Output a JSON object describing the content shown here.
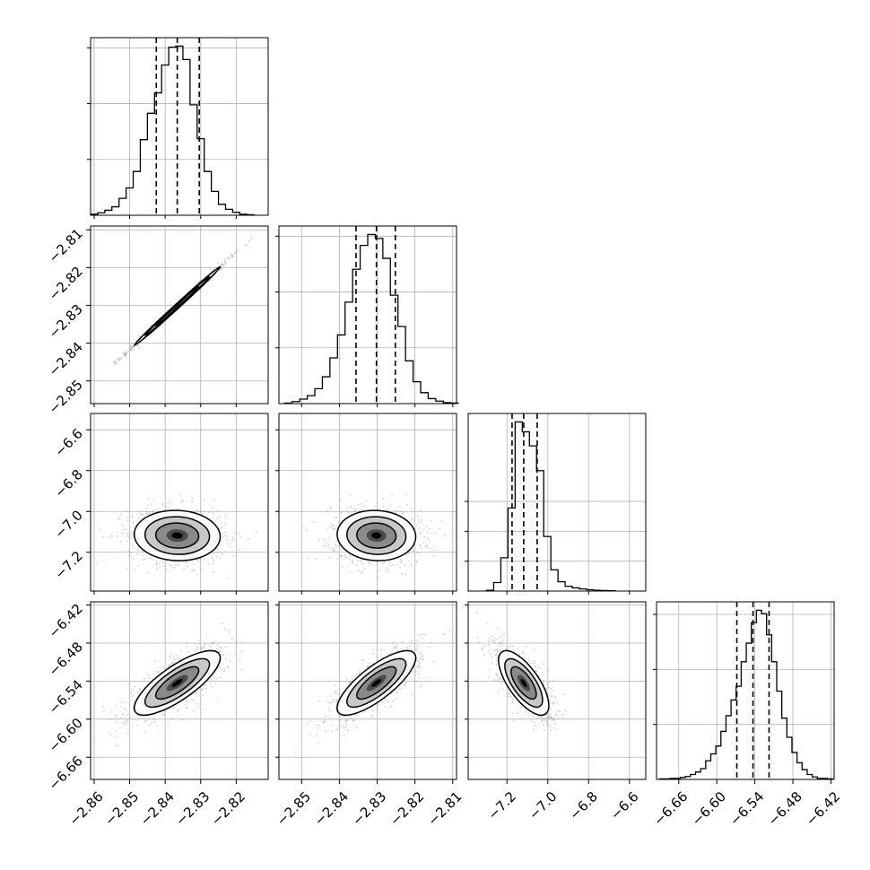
{
  "chart_data": {
    "type": "corner",
    "title": "",
    "grid": true,
    "parameters": [
      {
        "range": [
          -2.861,
          -2.811
        ],
        "ticks": [
          "−2.86",
          "−2.85",
          "−2.84",
          "−2.83",
          "−2.82"
        ],
        "tick_values": [
          -2.86,
          -2.85,
          -2.84,
          -2.83,
          -2.82
        ],
        "quantiles": [
          -2.8425,
          -2.8366,
          -2.8304
        ],
        "histogram": {
          "bin_edges": [
            -2.861,
            -2.859,
            -2.857,
            -2.855,
            -2.853,
            -2.851,
            -2.849,
            -2.847,
            -2.845,
            -2.843,
            -2.841,
            -2.839,
            -2.837,
            -2.835,
            -2.833,
            -2.831,
            -2.829,
            -2.827,
            -2.825,
            -2.823,
            -2.821,
            -2.819,
            -2.817,
            -2.815
          ],
          "counts": [
            2,
            5,
            10,
            17,
            34,
            55,
            88,
            152,
            205,
            246,
            302,
            338,
            340,
            313,
            222,
            154,
            88,
            48,
            22,
            12,
            6,
            2,
            1
          ]
        }
      },
      {
        "range": [
          -2.856,
          -2.809
        ],
        "ticks": [
          "−2.85",
          "−2.84",
          "−2.83",
          "−2.82",
          "−2.81"
        ],
        "tick_values": [
          -2.85,
          -2.84,
          -2.83,
          -2.82,
          -2.81
        ],
        "quantiles": [
          -2.8356,
          -2.8302,
          -2.8252
        ],
        "histogram": {
          "bin_edges": [
            -2.8545,
            -2.8525,
            -2.8505,
            -2.8485,
            -2.8465,
            -2.8445,
            -2.8425,
            -2.8405,
            -2.8385,
            -2.8365,
            -2.8345,
            -2.8325,
            -2.8305,
            -2.8285,
            -2.8265,
            -2.8245,
            -2.8225,
            -2.8205,
            -2.8185,
            -2.8165,
            -2.8145,
            -2.8125,
            -2.8105,
            -2.8085
          ],
          "counts": [
            1,
            4,
            9,
            16,
            30,
            54,
            92,
            138,
            204,
            270,
            318,
            340,
            332,
            292,
            218,
            155,
            86,
            44,
            22,
            10,
            5,
            2,
            1
          ]
        }
      },
      {
        "range": [
          -7.39,
          -6.52
        ],
        "ticks": [
          "−7.2",
          "−7.0",
          "−6.8",
          "−6.6"
        ],
        "tick_values": [
          -7.2,
          -7.0,
          -6.8,
          -6.6
        ],
        "quantiles": [
          -7.175,
          -7.118,
          -7.052
        ],
        "histogram": {
          "bin_edges": [
            -7.3,
            -7.265,
            -7.23,
            -7.195,
            -7.16,
            -7.125,
            -7.09,
            -7.055,
            -7.02,
            -6.985,
            -6.95,
            -6.915,
            -6.88,
            -6.845,
            -6.81,
            -6.775,
            -6.74,
            -6.705,
            -6.67
          ],
          "counts": [
            3,
            32,
            125,
            312,
            635,
            598,
            545,
            452,
            205,
            80,
            35,
            18,
            12,
            8,
            5,
            3,
            2,
            1
          ]
        }
      },
      {
        "range": [
          -6.695,
          -6.415
        ],
        "ticks": [
          "−6.66",
          "−6.60",
          "−6.54",
          "−6.48",
          "−6.42"
        ],
        "tick_values": [
          -6.66,
          -6.6,
          -6.54,
          -6.48,
          -6.42
        ],
        "quantiles": [
          -6.5684,
          -6.5429,
          -6.5176
        ],
        "histogram": {
          "bin_edges": [
            -6.6895,
            -6.6815,
            -6.6735,
            -6.6655,
            -6.6575,
            -6.6495,
            -6.6415,
            -6.6335,
            -6.6255,
            -6.6175,
            -6.6095,
            -6.6015,
            -6.5935,
            -6.5855,
            -6.5775,
            -6.5695,
            -6.5615,
            -6.5535,
            -6.5455,
            -6.5375,
            -6.5295,
            -6.5215,
            -6.5135,
            -6.5055,
            -6.4975,
            -6.4895,
            -6.4815,
            -6.4735,
            -6.4655,
            -6.4575,
            -6.4495,
            -6.4415,
            -6.4335,
            -6.4255,
            -6.4175
          ],
          "counts": [
            1,
            1,
            2,
            2,
            4,
            6,
            10,
            15,
            22,
            38,
            52,
            68,
            98,
            130,
            162,
            190,
            240,
            278,
            320,
            345,
            338,
            295,
            240,
            180,
            125,
            86,
            55,
            34,
            20,
            10,
            5,
            2,
            2,
            1
          ]
        }
      }
    ],
    "pair_panels": [
      {
        "row": 1,
        "col": 0,
        "correlation": 0.997
      },
      {
        "row": 2,
        "col": 0,
        "correlation": -0.05
      },
      {
        "row": 2,
        "col": 1,
        "correlation": -0.05
      },
      {
        "row": 3,
        "col": 0,
        "correlation": 0.78
      },
      {
        "row": 3,
        "col": 1,
        "correlation": 0.78
      },
      {
        "row": 3,
        "col": 2,
        "correlation": -0.7
      }
    ],
    "colors": {
      "line": "#000000",
      "points": "#9a9a9a",
      "grid": "#b0b0b0",
      "density": [
        "#ffffff",
        "#c8c8c8",
        "#8a8a8a",
        "#4a4a4a",
        "#000000"
      ]
    }
  }
}
